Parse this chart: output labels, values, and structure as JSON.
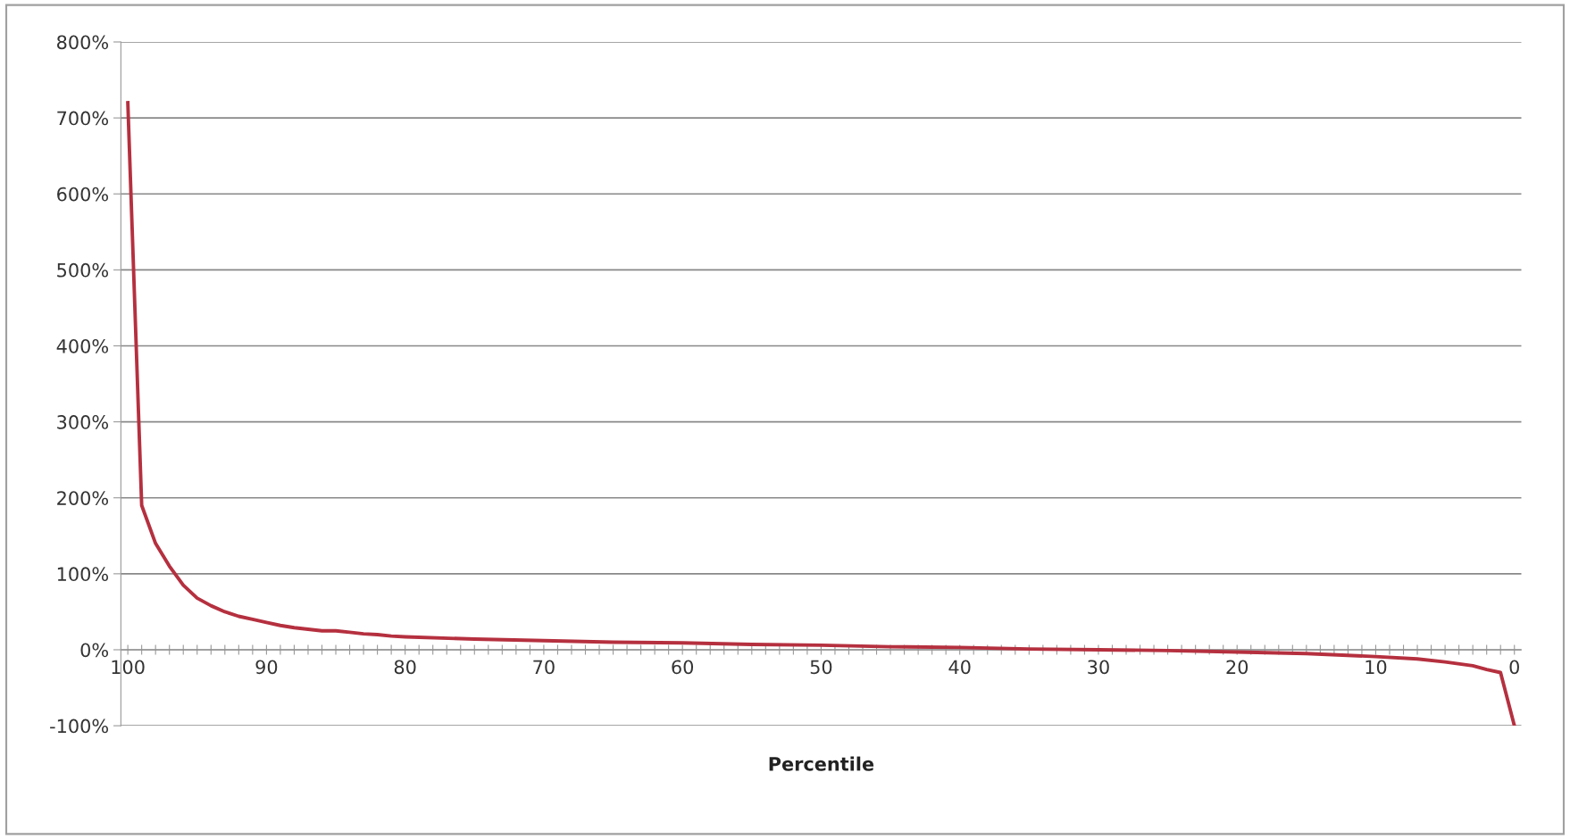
{
  "chart_data": {
    "type": "line",
    "xlabel": "Percentile",
    "x": [
      100,
      99,
      98,
      97,
      96,
      95,
      94,
      93,
      92,
      91,
      90,
      89,
      88,
      87,
      86,
      85,
      84,
      83,
      82,
      81,
      80,
      75,
      70,
      65,
      60,
      55,
      50,
      45,
      40,
      35,
      30,
      25,
      20,
      15,
      10,
      7,
      5,
      3,
      2,
      1,
      0
    ],
    "series": [
      {
        "color": "#b5303f",
        "values": [
          720,
          190,
          140,
          110,
          85,
          68,
          58,
          50,
          44,
          40,
          36,
          32,
          29,
          27,
          25,
          25,
          23,
          21,
          20,
          18,
          17,
          14,
          12,
          10,
          9,
          7,
          6,
          4,
          3,
          1,
          0,
          -1,
          -3,
          -5,
          -9,
          -12,
          -16,
          -21,
          -26,
          -30,
          -100
        ]
      }
    ],
    "xlim": [
      100.5,
      -0.5
    ],
    "xticks": [
      100,
      {
        "value": 99,
        "label": null
      },
      {
        "value": 98,
        "label": null
      },
      {
        "value": 97,
        "label": null
      },
      {
        "value": 96,
        "label": null
      },
      {
        "value": 95,
        "label": null
      },
      {
        "value": 94,
        "label": null
      },
      {
        "value": 93,
        "label": null
      },
      {
        "value": 92,
        "label": null
      },
      {
        "value": 91,
        "label": null
      },
      90,
      {
        "value": 89,
        "label": null
      },
      {
        "value": 88,
        "label": null
      },
      {
        "value": 87,
        "label": null
      },
      {
        "value": 86,
        "label": null
      },
      {
        "value": 85,
        "label": null
      },
      {
        "value": 84,
        "label": null
      },
      {
        "value": 83,
        "label": null
      },
      {
        "value": 82,
        "label": null
      },
      {
        "value": 81,
        "label": null
      },
      80,
      {
        "value": 79,
        "label": null
      },
      {
        "value": 78,
        "label": null
      },
      {
        "value": 77,
        "label": null
      },
      {
        "value": 76,
        "label": null
      },
      {
        "value": 75,
        "label": null
      },
      {
        "value": 74,
        "label": null
      },
      {
        "value": 73,
        "label": null
      },
      {
        "value": 72,
        "label": null
      },
      {
        "value": 71,
        "label": null
      },
      70,
      {
        "value": 69,
        "label": null
      },
      {
        "value": 68,
        "label": null
      },
      {
        "value": 67,
        "label": null
      },
      {
        "value": 66,
        "label": null
      },
      {
        "value": 65,
        "label": null
      },
      {
        "value": 64,
        "label": null
      },
      {
        "value": 63,
        "label": null
      },
      {
        "value": 62,
        "label": null
      },
      {
        "value": 61,
        "label": null
      },
      60,
      {
        "value": 59,
        "label": null
      },
      {
        "value": 58,
        "label": null
      },
      {
        "value": 57,
        "label": null
      },
      {
        "value": 56,
        "label": null
      },
      {
        "value": 55,
        "label": null
      },
      {
        "value": 54,
        "label": null
      },
      {
        "value": 53,
        "label": null
      },
      {
        "value": 52,
        "label": null
      },
      {
        "value": 51,
        "label": null
      },
      50,
      {
        "value": 49,
        "label": null
      },
      {
        "value": 48,
        "label": null
      },
      {
        "value": 47,
        "label": null
      },
      {
        "value": 46,
        "label": null
      },
      {
        "value": 45,
        "label": null
      },
      {
        "value": 44,
        "label": null
      },
      {
        "value": 43,
        "label": null
      },
      {
        "value": 42,
        "label": null
      },
      {
        "value": 41,
        "label": null
      },
      40,
      {
        "value": 39,
        "label": null
      },
      {
        "value": 38,
        "label": null
      },
      {
        "value": 37,
        "label": null
      },
      {
        "value": 36,
        "label": null
      },
      {
        "value": 35,
        "label": null
      },
      {
        "value": 34,
        "label": null
      },
      {
        "value": 33,
        "label": null
      },
      {
        "value": 32,
        "label": null
      },
      {
        "value": 31,
        "label": null
      },
      30,
      {
        "value": 29,
        "label": null
      },
      {
        "value": 28,
        "label": null
      },
      {
        "value": 27,
        "label": null
      },
      {
        "value": 26,
        "label": null
      },
      {
        "value": 25,
        "label": null
      },
      {
        "value": 24,
        "label": null
      },
      {
        "value": 23,
        "label": null
      },
      {
        "value": 22,
        "label": null
      },
      {
        "value": 21,
        "label": null
      },
      20,
      {
        "value": 19,
        "label": null
      },
      {
        "value": 18,
        "label": null
      },
      {
        "value": 17,
        "label": null
      },
      {
        "value": 16,
        "label": null
      },
      {
        "value": 15,
        "label": null
      },
      {
        "value": 14,
        "label": null
      },
      {
        "value": 13,
        "label": null
      },
      {
        "value": 12,
        "label": null
      },
      {
        "value": 11,
        "label": null
      },
      10,
      {
        "value": 9,
        "label": null
      },
      {
        "value": 8,
        "label": null
      },
      {
        "value": 7,
        "label": null
      },
      {
        "value": 6,
        "label": null
      },
      {
        "value": 5,
        "label": null
      },
      {
        "value": 4,
        "label": null
      },
      {
        "value": 3,
        "label": null
      },
      {
        "value": 2,
        "label": null
      },
      {
        "value": 1,
        "label": null
      },
      0
    ],
    "ylim": [
      -100,
      800
    ],
    "yticks": [
      {
        "value": -100,
        "label": "-100%"
      },
      {
        "value": 0,
        "label": "0%"
      },
      {
        "value": 100,
        "label": "100%"
      },
      {
        "value": 200,
        "label": "200%"
      },
      {
        "value": 300,
        "label": "300%"
      },
      {
        "value": 400,
        "label": "400%"
      },
      {
        "value": 500,
        "label": "500%"
      },
      {
        "value": 600,
        "label": "600%"
      },
      {
        "value": 700,
        "label": "700%"
      },
      {
        "value": 800,
        "label": "800%"
      }
    ],
    "grid": "y",
    "marker": "none",
    "line_style": "solid",
    "legend": false
  }
}
